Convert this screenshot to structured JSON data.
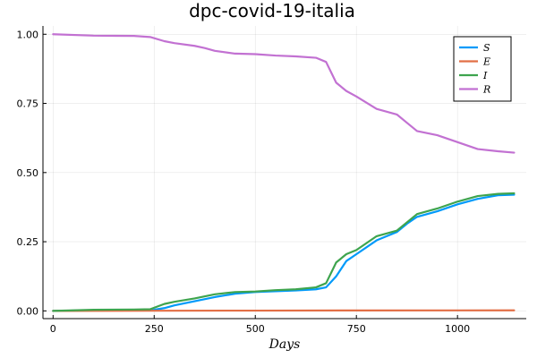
{
  "chart_data": {
    "type": "line",
    "title": "dpc-covid-19-italia",
    "xlabel": "Days",
    "ylabel": "",
    "xlim": [
      -25,
      1170
    ],
    "ylim": [
      -0.028,
      1.03
    ],
    "x_ticks": [
      0,
      250,
      500,
      750,
      1000
    ],
    "x_tick_labels": [
      "0",
      "250",
      "500",
      "750",
      "1000"
    ],
    "y_ticks": [
      0,
      0.25,
      0.5,
      0.75,
      1.0
    ],
    "y_tick_labels": [
      "0.00",
      "0.25",
      "0.50",
      "0.75",
      "1.00"
    ],
    "grid": true,
    "legend_position": "top-right",
    "series": [
      {
        "name": "S",
        "color": "#009AFA",
        "points": [
          [
            0,
            0
          ],
          [
            100,
            0.002
          ],
          [
            200,
            0.003
          ],
          [
            250,
            0.004
          ],
          [
            275,
            0.01
          ],
          [
            300,
            0.02
          ],
          [
            350,
            0.035
          ],
          [
            400,
            0.05
          ],
          [
            450,
            0.062
          ],
          [
            500,
            0.068
          ],
          [
            550,
            0.071
          ],
          [
            600,
            0.074
          ],
          [
            650,
            0.078
          ],
          [
            675,
            0.085
          ],
          [
            700,
            0.125
          ],
          [
            725,
            0.18
          ],
          [
            750,
            0.205
          ],
          [
            800,
            0.255
          ],
          [
            850,
            0.285
          ],
          [
            875,
            0.315
          ],
          [
            900,
            0.34
          ],
          [
            950,
            0.36
          ],
          [
            1000,
            0.385
          ],
          [
            1050,
            0.405
          ],
          [
            1100,
            0.418
          ],
          [
            1140,
            0.42
          ]
        ]
      },
      {
        "name": "E",
        "color": "#E26F46",
        "points": [
          [
            0,
            0
          ],
          [
            250,
            0.0005
          ],
          [
            500,
            0.001
          ],
          [
            750,
            0.0015
          ],
          [
            1000,
            0.0018
          ],
          [
            1140,
            0.002
          ]
        ]
      },
      {
        "name": "I",
        "color": "#3EA44E",
        "points": [
          [
            0,
            0
          ],
          [
            100,
            0.004
          ],
          [
            200,
            0.005
          ],
          [
            240,
            0.006
          ],
          [
            275,
            0.025
          ],
          [
            300,
            0.033
          ],
          [
            350,
            0.045
          ],
          [
            400,
            0.06
          ],
          [
            450,
            0.068
          ],
          [
            500,
            0.07
          ],
          [
            550,
            0.075
          ],
          [
            600,
            0.078
          ],
          [
            650,
            0.085
          ],
          [
            675,
            0.1
          ],
          [
            700,
            0.175
          ],
          [
            725,
            0.205
          ],
          [
            750,
            0.22
          ],
          [
            800,
            0.27
          ],
          [
            850,
            0.29
          ],
          [
            875,
            0.32
          ],
          [
            900,
            0.35
          ],
          [
            950,
            0.37
          ],
          [
            1000,
            0.395
          ],
          [
            1050,
            0.415
          ],
          [
            1100,
            0.423
          ],
          [
            1140,
            0.425
          ]
        ]
      },
      {
        "name": "R",
        "color": "#C271D2",
        "points": [
          [
            0,
            1.0
          ],
          [
            100,
            0.995
          ],
          [
            200,
            0.994
          ],
          [
            240,
            0.99
          ],
          [
            275,
            0.975
          ],
          [
            300,
            0.968
          ],
          [
            350,
            0.958
          ],
          [
            375,
            0.95
          ],
          [
            400,
            0.94
          ],
          [
            450,
            0.93
          ],
          [
            500,
            0.928
          ],
          [
            550,
            0.923
          ],
          [
            600,
            0.92
          ],
          [
            650,
            0.915
          ],
          [
            675,
            0.9
          ],
          [
            700,
            0.825
          ],
          [
            725,
            0.795
          ],
          [
            750,
            0.775
          ],
          [
            800,
            0.73
          ],
          [
            850,
            0.71
          ],
          [
            875,
            0.68
          ],
          [
            900,
            0.65
          ],
          [
            950,
            0.635
          ],
          [
            1000,
            0.61
          ],
          [
            1050,
            0.585
          ],
          [
            1100,
            0.577
          ],
          [
            1140,
            0.572
          ]
        ]
      }
    ]
  }
}
